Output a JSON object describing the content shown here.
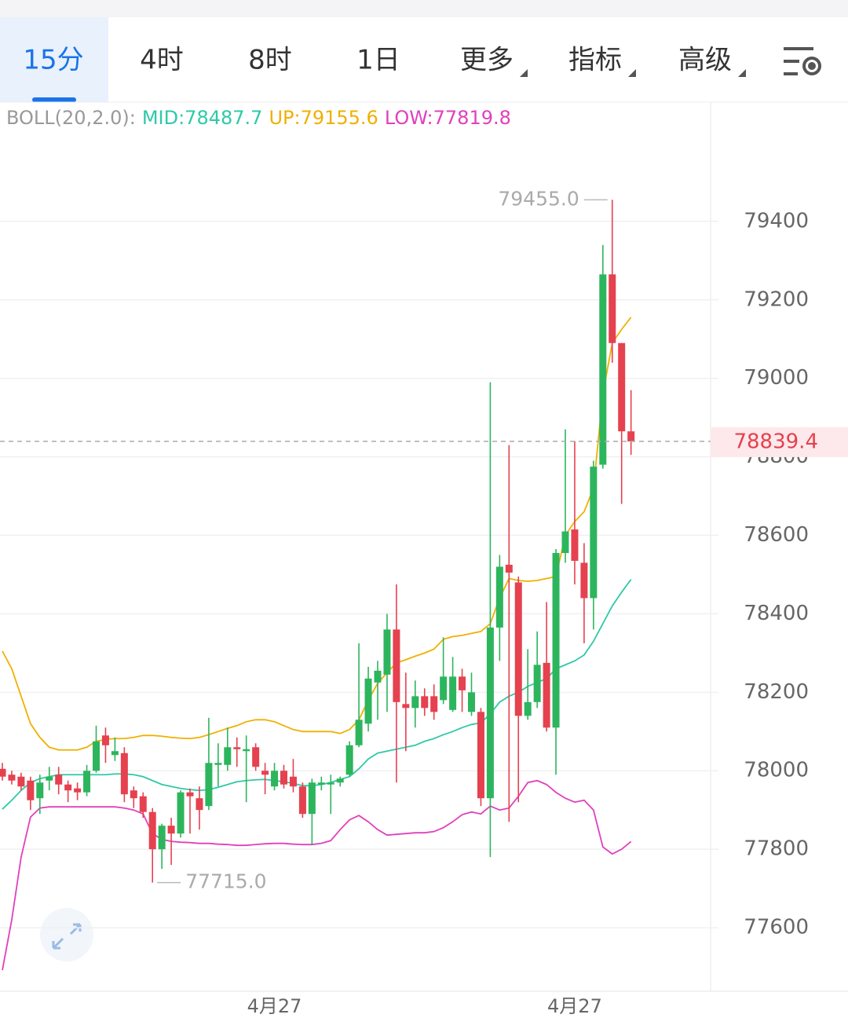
{
  "tabs": [
    "15分",
    "4时",
    "8时",
    "1日",
    "更多",
    "指标",
    "高级"
  ],
  "chart_data": {
    "type": "candlestick",
    "indicator": "BOLL(20,2.0):",
    "categories": [
      null,
      null,
      null,
      null,
      null,
      null,
      null,
      null,
      null,
      null,
      null,
      null,
      null,
      null,
      null,
      null,
      null,
      null,
      null,
      null,
      null,
      null,
      null,
      null,
      null,
      null,
      null,
      null,
      null,
      "4月27",
      null,
      null,
      null,
      null,
      null,
      null,
      null,
      null,
      null,
      null,
      null,
      null,
      null,
      null,
      null,
      null,
      null,
      null,
      null,
      null,
      null,
      null,
      null,
      null,
      null,
      null,
      null,
      null,
      null,
      null,
      null,
      "4月27",
      null,
      null,
      null,
      null,
      null,
      null
    ],
    "open": [
      78005,
      77990,
      77985,
      77975,
      77930,
      77975,
      77990,
      77965,
      77955,
      77945,
      78000,
      78090,
      78040,
      78045,
      77950,
      77935,
      77895,
      77800,
      77860,
      77840,
      77945,
      77930,
      77910,
      78015,
      78015,
      78060,
      78050,
      78060,
      78000,
      77960,
      78000,
      77985,
      77960,
      77890,
      77965,
      77965,
      77970,
      77990,
      78065,
      78120,
      78225,
      78245,
      78360,
      78170,
      78160,
      78190,
      78190,
      78180,
      78155,
      78240,
      78150,
      78150,
      77930,
      78365,
      78525,
      78480,
      78140,
      78175,
      78275,
      78110,
      78555,
      78615,
      78530,
      78440,
      78780,
      79265,
      79090,
      78865
    ],
    "high": [
      78020,
      78000,
      77995,
      77985,
      77990,
      78010,
      78010,
      77975,
      77970,
      78015,
      78115,
      78110,
      78085,
      78060,
      77960,
      77945,
      77905,
      77865,
      77880,
      77950,
      77955,
      77960,
      78135,
      78070,
      78110,
      78085,
      78090,
      78070,
      78020,
      78020,
      78015,
      78030,
      77970,
      77980,
      77985,
      77990,
      77985,
      78075,
      78325,
      78265,
      78280,
      78400,
      78475,
      78250,
      78230,
      78210,
      78220,
      78340,
      78290,
      78260,
      78250,
      78160,
      78990,
      78550,
      78830,
      78495,
      78310,
      78355,
      78430,
      78565,
      78870,
      78840,
      78580,
      78790,
      79340,
      79455,
      79090,
      78970
    ],
    "low": [
      77975,
      77965,
      77950,
      77900,
      77890,
      77950,
      77940,
      77920,
      77925,
      77935,
      77995,
      78020,
      78025,
      77920,
      77905,
      77880,
      77715,
      77750,
      77760,
      77830,
      77840,
      77850,
      77900,
      77960,
      78000,
      78010,
      77920,
      78000,
      77940,
      77950,
      77955,
      77945,
      77880,
      77810,
      77950,
      77890,
      77960,
      77985,
      78060,
      78100,
      78130,
      78150,
      77970,
      78050,
      78110,
      78140,
      78130,
      78170,
      78150,
      78150,
      78140,
      77910,
      77780,
      78280,
      77870,
      77920,
      78130,
      78160,
      78100,
      77990,
      78530,
      78475,
      78325,
      78360,
      78770,
      79040,
      78680,
      78805
    ],
    "close": [
      77985,
      77975,
      77960,
      77925,
      77970,
      77985,
      77965,
      77950,
      77945,
      78000,
      78075,
      78065,
      78050,
      77940,
      77930,
      77895,
      77800,
      77860,
      77840,
      77945,
      77935,
      77900,
      78020,
      78020,
      78060,
      78055,
      78055,
      78010,
      77990,
      78000,
      77965,
      77960,
      77890,
      77970,
      77970,
      77970,
      77980,
      78065,
      78130,
      78235,
      78255,
      78360,
      78175,
      78160,
      78190,
      78160,
      78150,
      78240,
      78240,
      78205,
      78200,
      77930,
      78365,
      78520,
      78505,
      78140,
      78175,
      78270,
      78110,
      78555,
      78610,
      78535,
      78440,
      78775,
      79265,
      79090,
      78865,
      78839.4
    ],
    "series": [
      {
        "name": "MID:78487.7",
        "color": "#2ec9a8",
        "values": [
          77902,
          77925,
          77950,
          77970,
          77980,
          77985,
          77990,
          77990,
          77990,
          77990,
          77990,
          77990,
          77992,
          77992,
          77990,
          77985,
          77975,
          77965,
          77960,
          77955,
          77952,
          77950,
          77952,
          77958,
          77965,
          77972,
          77975,
          77977,
          77978,
          77975,
          77972,
          77968,
          77962,
          77962,
          77965,
          77970,
          77978,
          77985,
          78005,
          78030,
          78045,
          78050,
          78055,
          78060,
          78065,
          78075,
          78082,
          78092,
          78100,
          78110,
          78118,
          78122,
          78145,
          78175,
          78190,
          78200,
          78215,
          78225,
          78235,
          78260,
          78270,
          78280,
          78295,
          78330,
          78375,
          78420,
          78455,
          78487.7
        ]
      },
      {
        "name": "UP:79155.6",
        "color": "#f0b000",
        "values": [
          78305,
          78260,
          78190,
          78120,
          78085,
          78060,
          78053,
          78053,
          78053,
          78060,
          78075,
          78080,
          78082,
          78082,
          78085,
          78090,
          78090,
          78088,
          78085,
          78083,
          78082,
          78085,
          78092,
          78100,
          78108,
          78115,
          78125,
          78130,
          78130,
          78125,
          78115,
          78105,
          78100,
          78100,
          78100,
          78100,
          78095,
          78105,
          78130,
          78180,
          78223,
          78250,
          78275,
          78283,
          78292,
          78300,
          78310,
          78335,
          78342,
          78345,
          78350,
          78355,
          78375,
          78440,
          78490,
          78485,
          78483,
          78485,
          78490,
          78495,
          78600,
          78635,
          78660,
          78720,
          78960,
          79090,
          79125,
          79155.6
        ]
      },
      {
        "name": "LOW:77819.8",
        "color": "#e040bc",
        "values": [
          77492,
          77620,
          77780,
          77882,
          77905,
          77908,
          77908,
          77908,
          77908,
          77908,
          77908,
          77908,
          77908,
          77905,
          77900,
          77890,
          77840,
          77825,
          77820,
          77818,
          77817,
          77815,
          77815,
          77813,
          77812,
          77810,
          77810,
          77812,
          77814,
          77815,
          77815,
          77813,
          77812,
          77812,
          77815,
          77822,
          77850,
          77875,
          77886,
          77870,
          77850,
          77836,
          77838,
          77840,
          77842,
          77842,
          77845,
          77855,
          77870,
          77888,
          77895,
          77890,
          77910,
          77900,
          77905,
          77935,
          77970,
          77975,
          77965,
          77945,
          77930,
          77920,
          77925,
          77900,
          77806,
          77788,
          77800,
          77819.8
        ]
      }
    ],
    "up_color": "#2db55d",
    "down_color": "#e5414f",
    "ylim": [
      77438,
      79704
    ],
    "yticks": [
      77600,
      77800,
      78000,
      78200,
      78400,
      78600,
      78800,
      79000,
      79200,
      79400
    ],
    "grid": true,
    "annotations": [
      {
        "label": "79455.0",
        "value": 79455,
        "index": 65
      },
      {
        "label": "77715.0",
        "value": 77715,
        "index": 16
      }
    ],
    "last_price": {
      "label": "78839.4",
      "value": 78839.4
    }
  }
}
